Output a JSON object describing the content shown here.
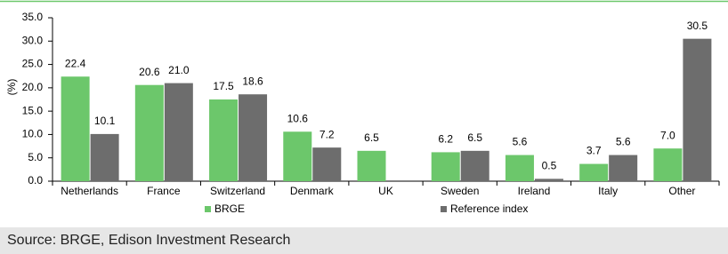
{
  "chart_data": {
    "type": "bar",
    "y_label": "(%)",
    "categories": [
      "Netherlands",
      "France",
      "Switzerland",
      "Denmark",
      "UK",
      "Sweden",
      "Ireland",
      "Italy",
      "Other"
    ],
    "series": [
      {
        "name": "BRGE",
        "color": "#6cc76b",
        "values": [
          22.4,
          20.6,
          17.5,
          10.6,
          6.5,
          6.2,
          5.6,
          3.7,
          7.0
        ],
        "value_labels": [
          "22.4",
          "20.6",
          "17.5",
          "10.6",
          "6.5",
          "6.2",
          "5.6",
          "3.7",
          "7.0"
        ]
      },
      {
        "name": "Reference index",
        "color": "#6d6d6d",
        "values": [
          10.1,
          21.0,
          18.6,
          7.2,
          null,
          6.5,
          0.5,
          5.6,
          30.5
        ],
        "value_labels": [
          "10.1",
          "21.0",
          "18.6",
          "7.2",
          null,
          "6.5",
          "0.5",
          "5.6",
          "30.5"
        ]
      }
    ],
    "ylim": [
      0,
      35
    ],
    "yticks": [
      {
        "value": 0,
        "label": "0.0"
      },
      {
        "value": 5,
        "label": "5.0"
      },
      {
        "value": 10,
        "label": "10.0"
      },
      {
        "value": 15,
        "label": "15.0"
      },
      {
        "value": 20,
        "label": "20.0"
      },
      {
        "value": 25,
        "label": "25.0"
      },
      {
        "value": 30,
        "label": "30.0"
      },
      {
        "value": 35,
        "label": "35.0"
      }
    ],
    "grid": false
  },
  "source": "Source: BRGE, Edison Investment Research"
}
